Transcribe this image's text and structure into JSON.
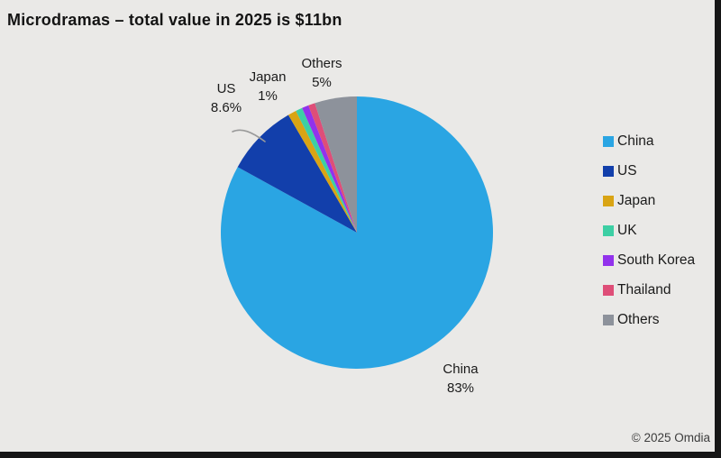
{
  "window": {
    "background_color": "#EAE9E7",
    "frame_color": "#161616"
  },
  "header": {
    "title": "Microdramas – total value in 2025 is $11bn"
  },
  "chart_data": {
    "type": "pie",
    "title": "Microdramas – total value in 2025 is $11bn",
    "labels": [
      "China",
      "US",
      "Japan",
      "UK",
      "South Korea",
      "Thailand",
      "Others"
    ],
    "values": [
      83,
      8.6,
      1,
      0.8,
      0.8,
      0.8,
      5
    ],
    "unit": "%",
    "colors": [
      "#2AA5E3",
      "#123FAB",
      "#D9A414",
      "#3DCFA4",
      "#9232EC",
      "#DE4E78",
      "#8D929B"
    ],
    "start_angle_deg": 0,
    "direction": "clockwise",
    "legend_position": "right",
    "total_note": "$11bn total in 2025"
  },
  "callouts": [
    {
      "target": "US",
      "line1": "US",
      "line2": "8.6%"
    },
    {
      "target": "Japan",
      "line1": "Japan",
      "line2": "1%"
    },
    {
      "target": "Others",
      "line1": "Others",
      "line2": "5%"
    },
    {
      "target": "China",
      "line1": "China",
      "line2": "83%"
    }
  ],
  "legend": {
    "items": [
      "China",
      "US",
      "Japan",
      "UK",
      "South Korea",
      "Thailand",
      "Others"
    ]
  },
  "footer": {
    "copyright": "© 2025 Omdia"
  }
}
